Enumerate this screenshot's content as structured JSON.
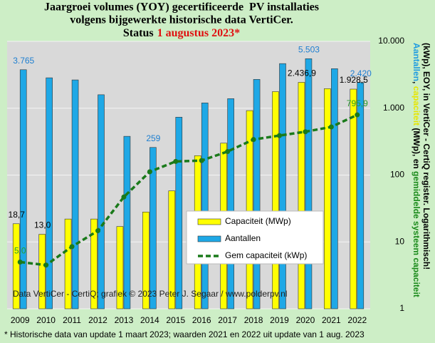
{
  "chart_data": {
    "type": "bar",
    "title_lines": [
      "Jaargroei volumes (YOY) gecertificeerde  PV installaties",
      "volgens bijgewerkte historische data VertiCer."
    ],
    "status_prefix": "Status",
    "status_date": "1 augustus 2023*",
    "status_color": "#e01010",
    "y_axis_label_lines": [
      [
        {
          "text": "Aantallen",
          "color": "#1e9be0"
        },
        {
          "text": ", ",
          "color": "#000000"
        },
        {
          "text": "capaciteit",
          "color": "#e6e600"
        },
        {
          "text": " (MWp), en ",
          "color": "#000000"
        },
        {
          "text": "gemiddelde systeem capaciteit",
          "color": "#1a8a1a"
        }
      ],
      [
        {
          "text": "(kWp), EOY, in VertiCer - CertiQ register. Logarithmisch!",
          "color": "#000000"
        }
      ]
    ],
    "watermark": "Data VertiCer - CertiQ; grafiek © 2023 Peter J. Segaar / www.polderpv.nl",
    "footnote": "* Historische data van update 1 maart 2023; waarden 2021 en 2022 uit update van 1 aug. 2023",
    "categories": [
      "2009",
      "2010",
      "2011",
      "2012",
      "2013",
      "2014",
      "2015",
      "2016",
      "2017",
      "2018",
      "2019",
      "2020",
      "2021",
      "2022"
    ],
    "log_scale": true,
    "grid": true,
    "ylim": [
      1,
      10000
    ],
    "yticks": [
      {
        "value": 10000,
        "label": "10.000"
      },
      {
        "value": 1000,
        "label": "1.000"
      },
      100,
      10,
      1
    ],
    "series": [
      {
        "name": "Capaciteit (MWp)",
        "type": "bar",
        "color": "#ffff00",
        "label_color": "#000000",
        "values": [
          18.7,
          13.0,
          22,
          22,
          17,
          28,
          58,
          195,
          300,
          920,
          1770,
          2436.9,
          1960,
          1928.5
        ],
        "value_labels": [
          "18,7",
          "13,0",
          null,
          null,
          null,
          null,
          null,
          null,
          null,
          null,
          null,
          "2.436,9",
          null,
          "1.928,5"
        ]
      },
      {
        "name": "Aantallen",
        "type": "bar",
        "color": "#1ea8e6",
        "label_color": "#1e7fd0",
        "values": [
          3765,
          2850,
          2650,
          1590,
          380,
          259,
          735,
          1200,
          1390,
          2700,
          4650,
          5503,
          3900,
          2420
        ],
        "value_labels": [
          "3.765",
          null,
          null,
          null,
          null,
          "259",
          null,
          null,
          null,
          null,
          null,
          "5.503",
          null,
          "2.420"
        ]
      },
      {
        "name": "Gem capaciteit (kWp)",
        "type": "line",
        "color": "#1a7a1a",
        "label_color": "#2a9a2a",
        "values": [
          5.0,
          4.5,
          8.5,
          14.7,
          47,
          112,
          160,
          165,
          225,
          340,
          390,
          445,
          525,
          795.9
        ],
        "value_labels": [
          "5,0",
          null,
          null,
          null,
          null,
          null,
          null,
          null,
          null,
          null,
          null,
          null,
          null,
          "795,9"
        ]
      }
    ]
  }
}
